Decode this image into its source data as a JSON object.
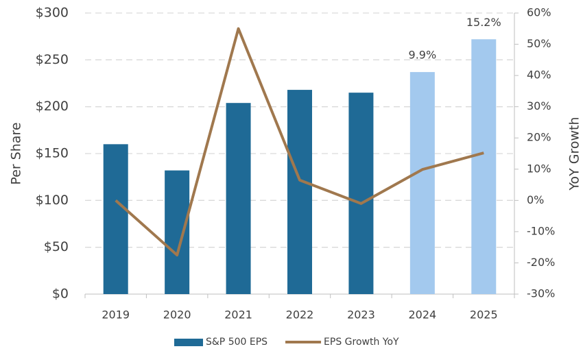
{
  "chart_data": {
    "type": "bar_line",
    "categories": [
      "2019",
      "2020",
      "2021",
      "2022",
      "2023",
      "2024",
      "2025"
    ],
    "ylabel": "Per Share",
    "y2label": "YoY Growth",
    "ylim": [
      0,
      300
    ],
    "yticks": [
      {
        "value": 0,
        "label": "$0"
      },
      {
        "value": 50,
        "label": "$50"
      },
      {
        "value": 100,
        "label": "$100"
      },
      {
        "value": 150,
        "label": "$150"
      },
      {
        "value": 200,
        "label": "$200"
      },
      {
        "value": 250,
        "label": "$250"
      },
      {
        "value": 300,
        "label": "$300"
      }
    ],
    "y2lim": [
      -30,
      60
    ],
    "y2ticks": [
      {
        "value": -30,
        "label": "-30%"
      },
      {
        "value": -20,
        "label": "-20%"
      },
      {
        "value": -10,
        "label": "-10%"
      },
      {
        "value": 0,
        "label": "0%"
      },
      {
        "value": 10,
        "label": "10%"
      },
      {
        "value": 20,
        "label": "20%"
      },
      {
        "value": 30,
        "label": "30%"
      },
      {
        "value": 40,
        "label": "40%"
      },
      {
        "value": 50,
        "label": "50%"
      },
      {
        "value": 60,
        "label": "60%"
      }
    ],
    "grid": true,
    "legend": "bottom",
    "series": [
      {
        "name": "S&P 500 EPS",
        "type": "bar",
        "color": "#1f6a96",
        "colors": [
          "#1f6a96",
          "#1f6a96",
          "#1f6a96",
          "#1f6a96",
          "#1f6a96",
          "#a3c9ee",
          "#a3c9ee"
        ],
        "values": [
          160,
          132,
          204,
          218,
          215,
          237,
          272
        ]
      },
      {
        "name": "EPS Growth YoY",
        "type": "line",
        "axis": "y2",
        "color": "#a0784e",
        "values": [
          0,
          -17.5,
          55,
          6.5,
          -1,
          9.9,
          15.2
        ],
        "value_labels": [
          null,
          null,
          null,
          null,
          null,
          "9.9%",
          "15.2%"
        ]
      }
    ]
  }
}
